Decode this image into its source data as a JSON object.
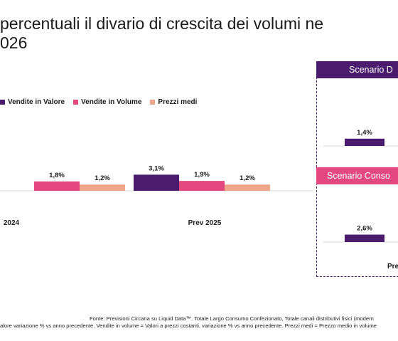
{
  "title": {
    "line1": "percentuali il divario di crescita dei volumi ne",
    "line2": "026"
  },
  "legend": [
    {
      "label": "Vendite in Valore",
      "color": "#4b1c6e"
    },
    {
      "label": "Vendite in Volume",
      "color": "#e3497f"
    },
    {
      "label": "Prezzi medi",
      "color": "#eea68a"
    }
  ],
  "scenarios": {
    "top": "Scenario D",
    "bottom": "Scenario Conso"
  },
  "chart_data": [
    {
      "type": "bar",
      "categories": [
        "2024",
        "Prev 2025"
      ],
      "series": [
        {
          "name": "Vendite in Valore",
          "values": [
            null,
            3.1
          ],
          "labels": [
            "",
            "3,1%"
          ]
        },
        {
          "name": "Vendite in Volume",
          "values": [
            1.8,
            1.9
          ],
          "labels": [
            "1,8%",
            "1,9%"
          ]
        },
        {
          "name": "Prezzi medi",
          "values": [
            1.2,
            1.2
          ],
          "labels": [
            "1,2%",
            "1,2%"
          ]
        }
      ]
    },
    {
      "type": "bar",
      "panel": "Scenario D",
      "categories": [
        ""
      ],
      "series": [
        {
          "name": "Vendite in Valore",
          "values": [
            1.4
          ],
          "labels": [
            "1,4%"
          ]
        }
      ]
    },
    {
      "type": "bar",
      "panel": "Scenario Conso",
      "categories": [
        "Pre"
      ],
      "series": [
        {
          "name": "Vendite in Valore",
          "values": [
            2.6
          ],
          "labels": [
            "2,6%"
          ]
        }
      ]
    }
  ],
  "footer": {
    "line1": "Fonte: Previsioni Circana su Liquid Data™. Totale Largo Consumo Confezionato, Totale canali distributivi fisici (modern",
    "line2": "alore variazione % vs anno precedente. Vendite in volume = Valori a prezzi costanti, variazione % vs anno precedente. Prezzi medi = Prezzo medio in volume"
  }
}
